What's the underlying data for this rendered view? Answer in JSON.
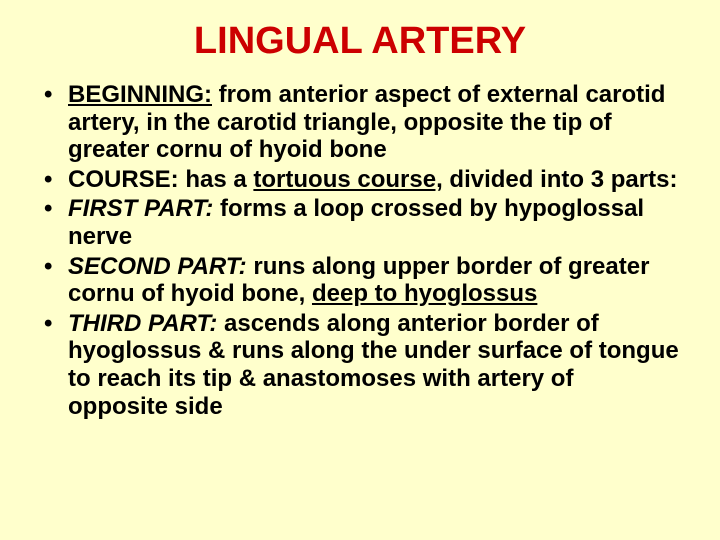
{
  "slide": {
    "background_color": "#ffffcc",
    "title": {
      "text": "LINGUAL ARTERY",
      "color": "#cc0000",
      "fontsize": 38,
      "weight": "bold"
    },
    "body_fontsize": 24,
    "body_color": "#000000",
    "bullets": [
      {
        "lead": "BEGINNING:",
        "lead_underline": true,
        "rest": " from anterior aspect of external carotid artery, in the carotid triangle, opposite the tip of greater cornu of hyoid bone"
      },
      {
        "lead": "COURSE:",
        "lead_underline": false,
        "mid": " has a ",
        "emph": "tortuous course,",
        "emph_underline": true,
        "rest": " divided into 3 parts:"
      },
      {
        "lead": "FIRST PART:",
        "lead_italic": true,
        "rest": " forms a loop crossed by hypoglossal nerve"
      },
      {
        "lead": "SECOND PART:",
        "lead_italic": true,
        "mid": " runs along upper border of greater cornu of hyoid bone, ",
        "emph": "deep to hyoglossus",
        "emph_underline": true,
        "rest": ""
      },
      {
        "lead": "THIRD PART:",
        "lead_italic": true,
        "rest": " ascends along anterior border of hyoglossus & runs along the under surface of tongue to reach its tip & anastomoses with artery of opposite side"
      }
    ]
  }
}
